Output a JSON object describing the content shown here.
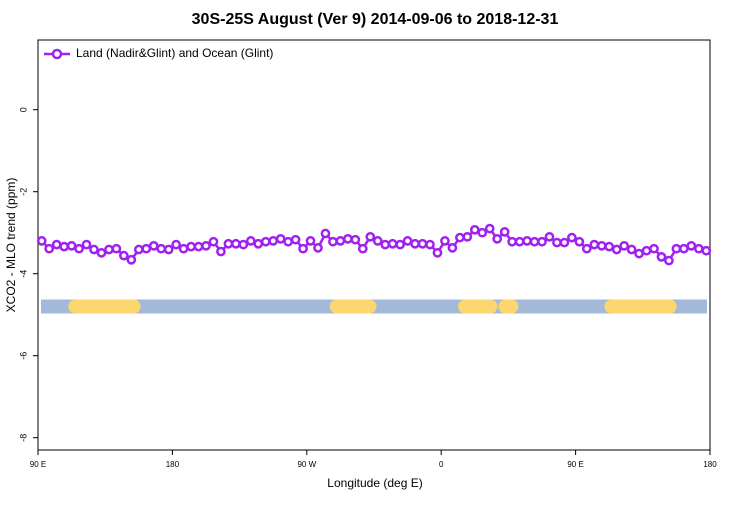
{
  "chart_data": {
    "type": "line",
    "title": "30S-25S August (Ver 9)   2014-09-06 to 2018-12-31",
    "x_label": "Longitude (deg E)",
    "y_label": "XCO2 - MLO trend (ppm)",
    "xlim": [
      90,
      540
    ],
    "xticks": [
      {
        "value": 90,
        "label": "90 E"
      },
      {
        "value": 180,
        "label": "180"
      },
      {
        "value": 270,
        "label": "90 W"
      },
      {
        "value": 360,
        "label": "0"
      },
      {
        "value": 450,
        "label": "90 E"
      },
      {
        "value": 540,
        "label": "180"
      }
    ],
    "ylim": [
      -8.3,
      1.7
    ],
    "yticks": [
      0,
      -2,
      -4,
      -6,
      -8
    ],
    "legend": "top-left",
    "x": [
      92.5,
      97.5,
      102.5,
      107.5,
      112.5,
      117.5,
      122.5,
      127.5,
      132.5,
      137.5,
      142.5,
      147.5,
      152.5,
      157.5,
      162.5,
      167.5,
      172.5,
      177.5,
      182.5,
      187.5,
      192.5,
      197.5,
      202.5,
      207.5,
      212.5,
      217.5,
      222.5,
      227.5,
      232.5,
      237.5,
      242.5,
      247.5,
      252.5,
      257.5,
      262.5,
      267.5,
      272.5,
      277.5,
      282.5,
      287.5,
      292.5,
      297.5,
      302.5,
      307.5,
      312.5,
      317.5,
      322.5,
      327.5,
      332.5,
      337.5,
      342.5,
      347.5,
      352.5,
      357.5,
      362.5,
      367.5,
      372.5,
      377.5,
      382.5,
      387.5,
      392.5,
      397.5,
      402.5,
      407.5,
      412.5,
      417.5,
      422.5,
      427.5,
      432.5,
      437.5,
      442.5,
      447.5,
      452.5,
      457.5,
      462.5,
      467.5,
      472.5,
      477.5,
      482.5,
      487.5,
      492.5,
      497.5,
      502.5,
      507.5,
      512.5,
      517.5,
      522.5,
      527.5,
      532.5,
      537.5
    ],
    "series": [
      {
        "name": "Land (Nadir&Glint) and Ocean (Glint)",
        "color": "#a020f0",
        "values": [
          -3.2,
          -3.39,
          -3.29,
          -3.34,
          -3.32,
          -3.39,
          -3.29,
          -3.41,
          -3.49,
          -3.41,
          -3.39,
          -3.56,
          -3.66,
          -3.41,
          -3.39,
          -3.32,
          -3.39,
          -3.41,
          -3.29,
          -3.39,
          -3.34,
          -3.34,
          -3.32,
          -3.22,
          -3.46,
          -3.27,
          -3.27,
          -3.29,
          -3.2,
          -3.27,
          -3.22,
          -3.2,
          -3.15,
          -3.22,
          -3.17,
          -3.39,
          -3.2,
          -3.37,
          -3.02,
          -3.22,
          -3.2,
          -3.15,
          -3.17,
          -3.39,
          -3.1,
          -3.2,
          -3.29,
          -3.27,
          -3.29,
          -3.2,
          -3.27,
          -3.27,
          -3.29,
          -3.49,
          -3.2,
          -3.37,
          -3.12,
          -3.1,
          -2.93,
          -3.0,
          -2.9,
          -3.15,
          -2.98,
          -3.22,
          -3.22,
          -3.2,
          -3.22,
          -3.22,
          -3.1,
          -3.24,
          -3.24,
          -3.12,
          -3.22,
          -3.39,
          -3.29,
          -3.32,
          -3.34,
          -3.41,
          -3.32,
          -3.41,
          -3.51,
          -3.44,
          -3.39,
          -3.59,
          -3.68,
          -3.39,
          -3.39,
          -3.32,
          -3.39,
          -3.44
        ]
      }
    ],
    "surface_band": {
      "y": -4.8,
      "color": "#a3b9d9",
      "land_color": "#fcd66f",
      "land_ranges": [
        [
          115,
          154
        ],
        [
          290,
          312
        ],
        [
          376,
          393
        ],
        [
          403,
          407
        ],
        [
          474,
          513
        ]
      ]
    }
  }
}
